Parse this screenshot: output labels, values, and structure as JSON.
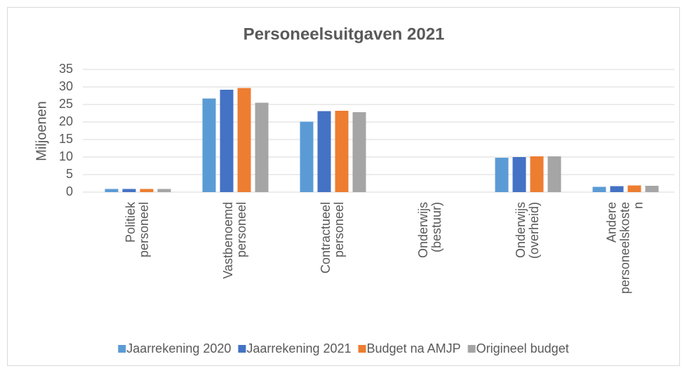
{
  "chart_data": {
    "type": "bar",
    "title": "Personeelsuitgaven 2021",
    "y_label": "Miljoenen",
    "categories": [
      [
        "Politiek",
        "personeel"
      ],
      [
        "Vastbenoemd",
        "personeel"
      ],
      [
        "Contractueel",
        "personeel"
      ],
      [
        "Onderwijs",
        "(bestuur)"
      ],
      [
        "Onderwijs",
        "(overheid)"
      ],
      [
        "Andere",
        "personeelskoste",
        "n"
      ]
    ],
    "series": [
      {
        "name": "Jaarrekening 2020",
        "color": "#5b9bd5",
        "values": [
          0.9,
          26.7,
          20.1,
          0,
          9.8,
          1.5
        ]
      },
      {
        "name": "Jaarrekening 2021",
        "color": "#4472c4",
        "values": [
          0.9,
          29.2,
          23.1,
          0,
          10.0,
          1.7
        ]
      },
      {
        "name": "Budget na AMJP",
        "color": "#ed7d31",
        "values": [
          0.9,
          29.7,
          23.2,
          0,
          10.2,
          1.9
        ]
      },
      {
        "name": "Origineel budget",
        "color": "#a5a5a5",
        "values": [
          0.9,
          25.5,
          22.8,
          0,
          10.2,
          1.8
        ]
      }
    ],
    "ylim": [
      0,
      35
    ],
    "yticks": [
      0,
      5,
      10,
      15,
      20,
      25,
      30,
      35
    ],
    "grid": true,
    "legend": "bottom"
  }
}
